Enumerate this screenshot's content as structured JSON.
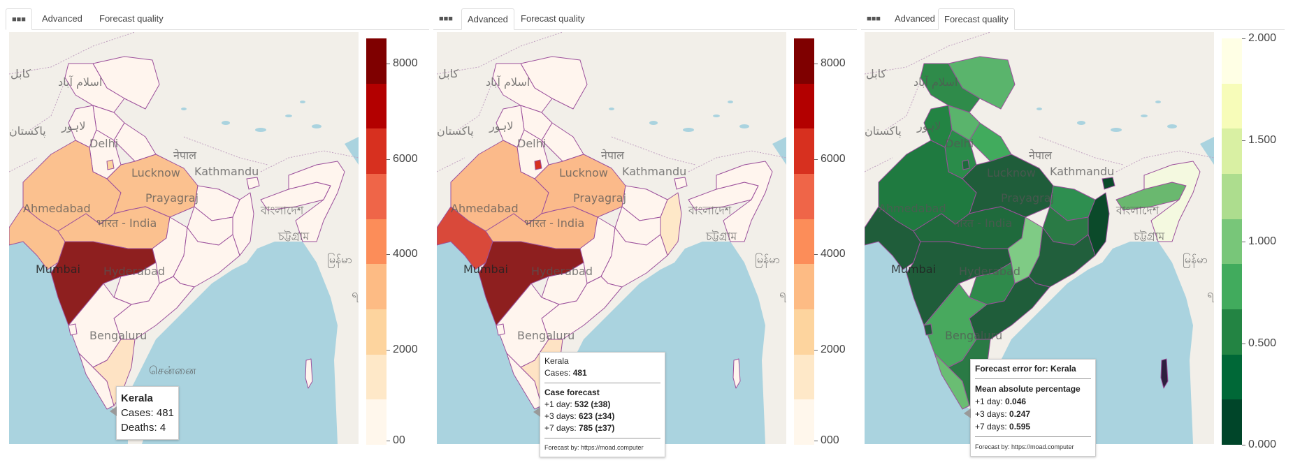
{
  "tabs": {
    "icon_label": "■■■",
    "advanced": "Advanced",
    "forecast_quality": "Forecast quality"
  },
  "map_labels": {
    "kabul": "کابل",
    "islamabad": "اسلام آباد",
    "lahore": "لاہور",
    "pakistan": "پاکستان",
    "delhi": "Delhi",
    "nepal": "नेपाल",
    "lucknow": "Lucknow",
    "kathmandu": "Kathmandu",
    "prayagraj": "Prayagraj",
    "ahmedabad": "Ahmedabad",
    "bharat": "भारत - India",
    "bangladesh": "বাংলাদেশ",
    "chattogram": "চট্টগ্রাম",
    "mumbai": "Mumbai",
    "hyderabad": "Hyderabad",
    "myanmar": "မြန်မာ",
    "bengaluru": "Bengaluru",
    "chennai": "சென்னை",
    "yangon": "ရန်ကုန်"
  },
  "colorbars": {
    "cases": {
      "ticks": [
        "8000",
        "6000",
        "4000",
        "2000",
        "00"
      ],
      "colors": [
        "#7f0000",
        "#b30000",
        "#d7301f",
        "#ef6548",
        "#fc8d59",
        "#fdbb84",
        "#fdd49e",
        "#fee8c8",
        "#fff7ec"
      ]
    },
    "cases2": {
      "ticks": [
        "8000",
        "6000",
        "4000",
        "2000",
        "000"
      ]
    },
    "error": {
      "ticks": [
        "2.000",
        "1.500",
        "1.000",
        "0.500",
        "0.000"
      ],
      "colors": [
        "#ffffe5",
        "#f7fcb9",
        "#d9f0a3",
        "#addd8e",
        "#78c679",
        "#41ab5d",
        "#238443",
        "#006837",
        "#004529"
      ]
    }
  },
  "tooltip_basic": {
    "title": "Kerala",
    "cases": "Cases: 481",
    "deaths": "Deaths: 4"
  },
  "tooltip_advanced": {
    "title": "Kerala",
    "cases_label": "Cases:",
    "cases_value": "481",
    "forecast_title": "Case forecast",
    "rows": [
      {
        "label": "+1 day:",
        "value": "532 (±38)"
      },
      {
        "label": "+3 days:",
        "value": "623 (±34)"
      },
      {
        "label": "+7 days:",
        "value": "785 (±37)"
      }
    ],
    "footer": "Forecast by: https://moad.computer"
  },
  "tooltip_quality": {
    "title": "Forecast error for: Kerala",
    "metric": "Mean absolute percentage",
    "rows": [
      {
        "label": "+1 day:",
        "value": "0.046"
      },
      {
        "label": "+3 days:",
        "value": "0.247"
      },
      {
        "label": "+7 days:",
        "value": "0.595"
      }
    ],
    "footer": "Forecast by: https://moad.computer"
  },
  "region_colors": {
    "p1": {
      "jk": "#fff5ee",
      "ladakh": "#fff5ee",
      "himachal": "#fff5ee",
      "punjab": "#fff5ee",
      "haryana": "#fff5ee",
      "delhi": "#fdd49e",
      "rajasthan": "#fbc18f",
      "up": "#fbc18f",
      "uttarakhand": "#fff5ee",
      "gujarat": "#fbc18f",
      "mp": "#fbc18f",
      "maharashtra": "#8e1f1f",
      "bihar": "#fff5ee",
      "jharkhand": "#fff5ee",
      "wb": "#fff5ee",
      "chhattisgarh": "#fff5ee",
      "odisha": "#fff5ee",
      "telangana": "#fff5ee",
      "ap": "#fff5ee",
      "karnataka": "#fff5ee",
      "kerala": "#fff5ee",
      "tn": "#fee3c4",
      "goa": "#fff5ee",
      "ne": "#fff5ee",
      "assam": "#fff5ee",
      "sikkim": "#fff5ee",
      "andaman": "#fff5ee"
    },
    "p2": {
      "jk": "#fff5ee",
      "ladakh": "#fff5ee",
      "himachal": "#fff5ee",
      "punjab": "#fff5ee",
      "haryana": "#fff5ee",
      "delhi": "#d7301f",
      "rajasthan": "#fbba8a",
      "up": "#fbba8a",
      "uttarakhand": "#fff5ee",
      "gujarat": "#d9493a",
      "mp": "#fbba8a",
      "maharashtra": "#8e1f1f",
      "bihar": "#fff5ee",
      "jharkhand": "#fff5ee",
      "wb": "#fee8c8",
      "chhattisgarh": "#fff5ee",
      "odisha": "#fff5ee",
      "telangana": "#fff5ee",
      "ap": "#fff5ee",
      "karnataka": "#fff5ee",
      "kerala": "#fff5ee",
      "tn": "#fee3c4",
      "goa": "#fff5ee",
      "ne": "#fff5ee",
      "assam": "#fff5ee",
      "sikkim": "#fff5ee",
      "andaman": "#fff5ee"
    },
    "p3": {
      "jk": "#2f8b4a",
      "ladakh": "#5ab46c",
      "himachal": "#5ab46c",
      "punjab": "#238443",
      "haryana": "#2a8c4a",
      "delhi": "#1d6b3b",
      "rajasthan": "#1f7a40",
      "up": "#1f5d3a",
      "uttarakhand": "#41ab5d",
      "gujarat": "#1f5d3a",
      "mp": "#1f6a3c",
      "maharashtra": "#1f5d3a",
      "bihar": "#2e8f50",
      "jharkhand": "#2a7a45",
      "wb": "#0b4a2a",
      "chhattisgarh": "#7fcb85",
      "odisha": "#215f3c",
      "telangana": "#2f8a4b",
      "ap": "#1f5d3a",
      "karnataka": "#48a95e",
      "kerala": "#6abd73",
      "tn": "#2a7a45",
      "goa": "#1f5d3a",
      "ne": "#f4f9e0",
      "assam": "#6ab86f",
      "sikkim": "#0b4a2a",
      "andaman": "#2e1f3e"
    }
  }
}
